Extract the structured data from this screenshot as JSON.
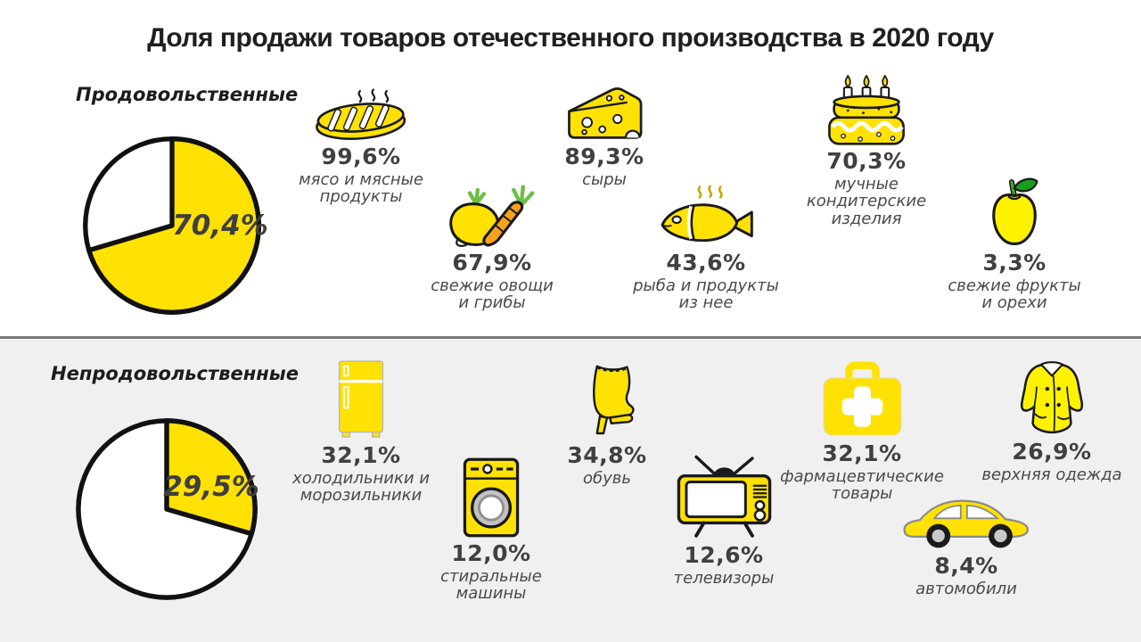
{
  "title": "Доля продажи товаров отечественного производства в 2020 году",
  "colors": {
    "accent_yellow": "#FFE203",
    "bright_yellow": "#FFF200",
    "carrot_orange": "#F7A11C",
    "leaf_green": "#6DBE45",
    "dark_green": "#18A018",
    "text_dark": "#3F3F3F",
    "label_gray": "#4A4A4A",
    "section_bg": "#F0F0F0",
    "divider_gray": "#7A7A7A"
  },
  "chart_data": [
    {
      "type": "pie",
      "section_title": "Продовольственные",
      "pie": {
        "value": 70.4,
        "display": "70,4%",
        "filled_color": "#FFE203",
        "empty_color": "#FFFFFF",
        "start": "top",
        "direction": "clockwise"
      },
      "items": [
        {
          "icon": "steak-icon",
          "value": 99.6,
          "display": "99,6%",
          "label": "мясо и мясные\nпродукты"
        },
        {
          "icon": "cheese-icon",
          "value": 89.3,
          "display": "89,3%",
          "label": "сыры"
        },
        {
          "icon": "cake-icon",
          "value": 70.3,
          "display": "70,3%",
          "label": "мучные\nкондитерские\nизделия"
        },
        {
          "icon": "vegetables-icon",
          "value": 67.9,
          "display": "67,9%",
          "label": "свежие овощи\nи грибы"
        },
        {
          "icon": "fish-icon",
          "value": 43.6,
          "display": "43,6%",
          "label": "рыба и продукты\nиз нее"
        },
        {
          "icon": "apple-icon",
          "value": 3.3,
          "display": "3,3%",
          "label": "свежие фрукты\nи орехи"
        }
      ]
    },
    {
      "type": "pie",
      "section_title": "Непродовольственные",
      "pie": {
        "value": 29.5,
        "display": "29,5%",
        "filled_color": "#FFE203",
        "empty_color": "#FFFFFF",
        "start": "top",
        "direction": "clockwise"
      },
      "items": [
        {
          "icon": "fridge-icon",
          "value": 32.1,
          "display": "32,1%",
          "label": "холодильники и\nморозильники"
        },
        {
          "icon": "shoe-icon",
          "value": 34.8,
          "display": "34,8%",
          "label": "обувь"
        },
        {
          "icon": "first-aid-kit-icon",
          "value": 32.1,
          "display": "32,1%",
          "label": "фармацевтические\nтовары"
        },
        {
          "icon": "coat-icon",
          "value": 26.9,
          "display": "26,9%",
          "label": "верхняя одежда"
        },
        {
          "icon": "washing-machine-icon",
          "value": 12.0,
          "display": "12,0%",
          "label": "стиральные\nмашины"
        },
        {
          "icon": "tv-icon",
          "value": 12.6,
          "display": "12,6%",
          "label": "телевизоры"
        },
        {
          "icon": "car-icon",
          "value": 8.4,
          "display": "8,4%",
          "label": "автомобили"
        }
      ]
    }
  ]
}
